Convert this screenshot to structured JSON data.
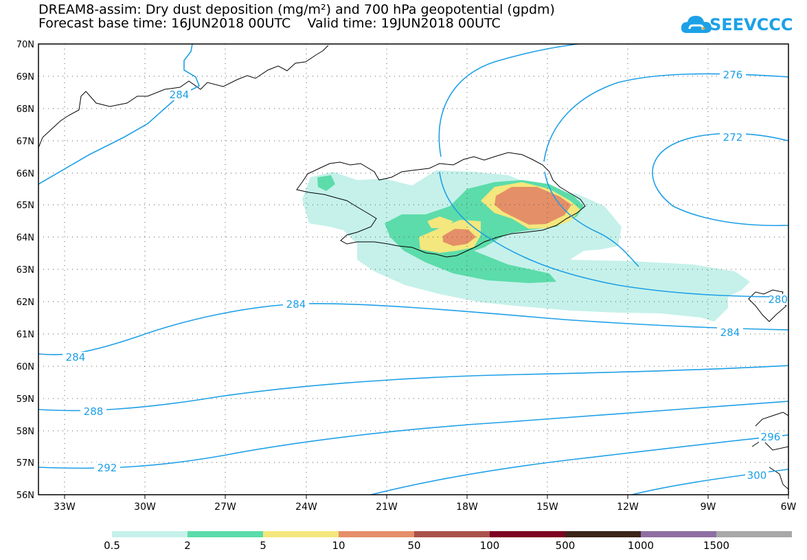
{
  "header": {
    "title_line1": "DREAM8-assim: Dry dust deposition (mg/m²) and 700 hPa geopotential (gpdm)",
    "forecast_label": "Forecast base time: 16JUN2018 00UTC",
    "valid_label": "Valid time: 19JUN2018 00UTC"
  },
  "logo": {
    "text": "SEEVCCC",
    "brand_color": "#1da1e6"
  },
  "axes": {
    "lat_labels": [
      "70N",
      "69N",
      "68N",
      "67N",
      "66N",
      "65N",
      "64N",
      "63N",
      "62N",
      "61N",
      "60N",
      "59N",
      "58N",
      "57N",
      "56N"
    ],
    "lon_labels": [
      "33W",
      "30W",
      "27W",
      "24W",
      "21W",
      "18W",
      "15W",
      "12W",
      "9W",
      "6W"
    ],
    "lat_range": [
      56,
      70
    ],
    "lon_range": [
      -34.4,
      -6
    ]
  },
  "contours": {
    "color": "#1d9fe6",
    "labels": [
      "284",
      "276",
      "272",
      "284",
      "284",
      "284",
      "288",
      "292",
      "296",
      "300",
      "280"
    ]
  },
  "colorbar": {
    "colors": [
      "#c5f1ea",
      "#5cdcaa",
      "#f4e77d",
      "#e58f69",
      "#a9524b",
      "#7e0322",
      "#3b2518",
      "#8f6fa3",
      "#a8a8a8"
    ],
    "labels": [
      "0.5",
      "2",
      "5",
      "10",
      "50",
      "100",
      "500",
      "1000",
      "1500"
    ]
  },
  "chart_data": {
    "type": "map",
    "title": "DREAM8-assim: Dry dust deposition (mg/m²) and 700 hPa geopotential (gpdm)",
    "region": "Iceland",
    "grid": true,
    "dust_deposition_levels_mg_m2": [
      0.5,
      2,
      5,
      10,
      50,
      100,
      500,
      1000,
      1500
    ],
    "geopotential_contours_gpdm": [
      272,
      276,
      280,
      284,
      288,
      292,
      296,
      300
    ],
    "max_deposition_class": "10-50"
  }
}
